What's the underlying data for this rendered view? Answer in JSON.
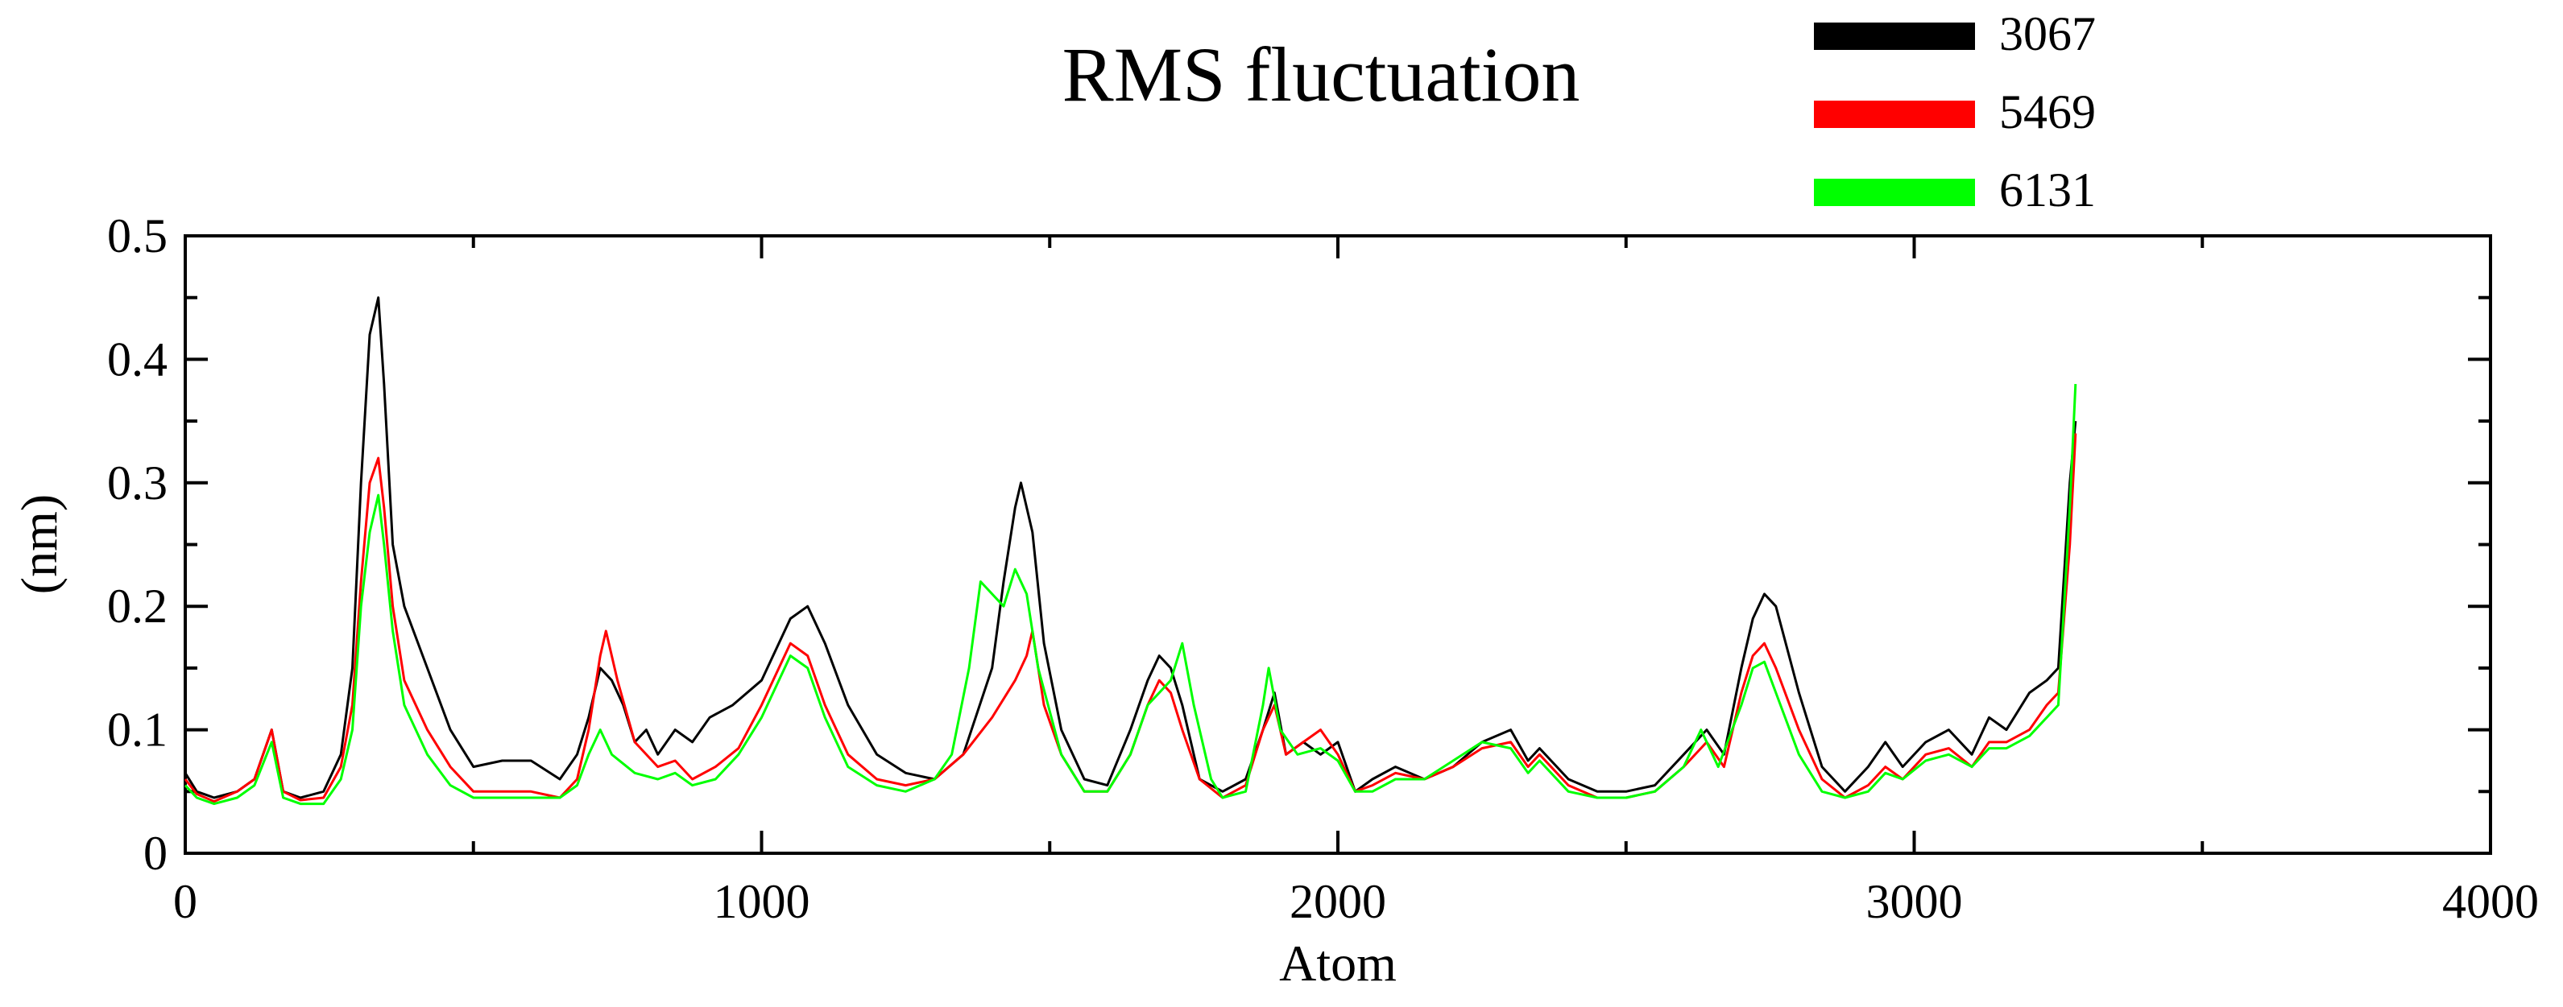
{
  "chart_data": {
    "type": "line",
    "title": "RMS fluctuation",
    "xlabel": "Atom",
    "ylabel": "(nm)",
    "xlim": [
      0,
      4000
    ],
    "ylim": [
      0,
      0.5
    ],
    "x_ticks": [
      "0",
      "1000",
      "2000",
      "3000",
      "4000"
    ],
    "y_ticks": [
      "0",
      "0.1",
      "0.2",
      "0.3",
      "0.4",
      "0.5"
    ],
    "grid": false,
    "legend_position": "top-right",
    "series": [
      {
        "name": "3067",
        "color": "#000000",
        "points": [
          [
            0,
            0.065
          ],
          [
            20,
            0.05
          ],
          [
            50,
            0.045
          ],
          [
            90,
            0.05
          ],
          [
            120,
            0.06
          ],
          [
            150,
            0.1
          ],
          [
            170,
            0.05
          ],
          [
            200,
            0.045
          ],
          [
            240,
            0.05
          ],
          [
            270,
            0.08
          ],
          [
            290,
            0.15
          ],
          [
            305,
            0.3
          ],
          [
            320,
            0.42
          ],
          [
            335,
            0.45
          ],
          [
            345,
            0.38
          ],
          [
            360,
            0.25
          ],
          [
            380,
            0.2
          ],
          [
            420,
            0.15
          ],
          [
            460,
            0.1
          ],
          [
            500,
            0.07
          ],
          [
            550,
            0.075
          ],
          [
            600,
            0.075
          ],
          [
            650,
            0.06
          ],
          [
            680,
            0.08
          ],
          [
            700,
            0.11
          ],
          [
            720,
            0.15
          ],
          [
            740,
            0.14
          ],
          [
            760,
            0.12
          ],
          [
            780,
            0.09
          ],
          [
            800,
            0.1
          ],
          [
            820,
            0.08
          ],
          [
            850,
            0.1
          ],
          [
            880,
            0.09
          ],
          [
            910,
            0.11
          ],
          [
            950,
            0.12
          ],
          [
            1000,
            0.14
          ],
          [
            1050,
            0.19
          ],
          [
            1080,
            0.2
          ],
          [
            1110,
            0.17
          ],
          [
            1150,
            0.12
          ],
          [
            1200,
            0.08
          ],
          [
            1250,
            0.065
          ],
          [
            1300,
            0.06
          ],
          [
            1350,
            0.08
          ],
          [
            1400,
            0.15
          ],
          [
            1420,
            0.22
          ],
          [
            1440,
            0.28
          ],
          [
            1450,
            0.3
          ],
          [
            1470,
            0.26
          ],
          [
            1490,
            0.17
          ],
          [
            1520,
            0.1
          ],
          [
            1560,
            0.06
          ],
          [
            1600,
            0.055
          ],
          [
            1640,
            0.1
          ],
          [
            1670,
            0.14
          ],
          [
            1690,
            0.16
          ],
          [
            1710,
            0.15
          ],
          [
            1730,
            0.12
          ],
          [
            1760,
            0.06
          ],
          [
            1800,
            0.05
          ],
          [
            1840,
            0.06
          ],
          [
            1870,
            0.1
          ],
          [
            1890,
            0.13
          ],
          [
            1910,
            0.08
          ],
          [
            1940,
            0.09
          ],
          [
            1970,
            0.08
          ],
          [
            2000,
            0.09
          ],
          [
            2030,
            0.05
          ],
          [
            2060,
            0.06
          ],
          [
            2100,
            0.07
          ],
          [
            2150,
            0.06
          ],
          [
            2200,
            0.07
          ],
          [
            2250,
            0.09
          ],
          [
            2300,
            0.1
          ],
          [
            2330,
            0.075
          ],
          [
            2350,
            0.085
          ],
          [
            2400,
            0.06
          ],
          [
            2450,
            0.05
          ],
          [
            2500,
            0.05
          ],
          [
            2550,
            0.055
          ],
          [
            2600,
            0.08
          ],
          [
            2640,
            0.1
          ],
          [
            2670,
            0.08
          ],
          [
            2700,
            0.15
          ],
          [
            2720,
            0.19
          ],
          [
            2740,
            0.21
          ],
          [
            2760,
            0.2
          ],
          [
            2800,
            0.13
          ],
          [
            2840,
            0.07
          ],
          [
            2880,
            0.05
          ],
          [
            2920,
            0.07
          ],
          [
            2950,
            0.09
          ],
          [
            2980,
            0.07
          ],
          [
            3020,
            0.09
          ],
          [
            3060,
            0.1
          ],
          [
            3100,
            0.08
          ],
          [
            3130,
            0.11
          ],
          [
            3160,
            0.1
          ],
          [
            3200,
            0.13
          ],
          [
            3230,
            0.14
          ],
          [
            3250,
            0.15
          ],
          [
            3270,
            0.3
          ],
          [
            3280,
            0.35
          ]
        ]
      },
      {
        "name": "5469",
        "color": "#ff0000",
        "points": [
          [
            0,
            0.06
          ],
          [
            20,
            0.048
          ],
          [
            50,
            0.042
          ],
          [
            90,
            0.05
          ],
          [
            120,
            0.06
          ],
          [
            150,
            0.1
          ],
          [
            170,
            0.05
          ],
          [
            200,
            0.043
          ],
          [
            240,
            0.045
          ],
          [
            270,
            0.07
          ],
          [
            290,
            0.12
          ],
          [
            305,
            0.22
          ],
          [
            320,
            0.3
          ],
          [
            335,
            0.32
          ],
          [
            345,
            0.28
          ],
          [
            360,
            0.2
          ],
          [
            380,
            0.14
          ],
          [
            420,
            0.1
          ],
          [
            460,
            0.07
          ],
          [
            500,
            0.05
          ],
          [
            550,
            0.05
          ],
          [
            600,
            0.05
          ],
          [
            650,
            0.045
          ],
          [
            680,
            0.06
          ],
          [
            700,
            0.1
          ],
          [
            720,
            0.16
          ],
          [
            730,
            0.18
          ],
          [
            750,
            0.14
          ],
          [
            780,
            0.09
          ],
          [
            820,
            0.07
          ],
          [
            850,
            0.075
          ],
          [
            880,
            0.06
          ],
          [
            920,
            0.07
          ],
          [
            960,
            0.085
          ],
          [
            1000,
            0.12
          ],
          [
            1050,
            0.17
          ],
          [
            1080,
            0.16
          ],
          [
            1110,
            0.12
          ],
          [
            1150,
            0.08
          ],
          [
            1200,
            0.06
          ],
          [
            1250,
            0.055
          ],
          [
            1300,
            0.06
          ],
          [
            1350,
            0.08
          ],
          [
            1400,
            0.11
          ],
          [
            1440,
            0.14
          ],
          [
            1460,
            0.16
          ],
          [
            1470,
            0.18
          ],
          [
            1490,
            0.12
          ],
          [
            1520,
            0.08
          ],
          [
            1560,
            0.05
          ],
          [
            1600,
            0.05
          ],
          [
            1640,
            0.08
          ],
          [
            1670,
            0.12
          ],
          [
            1690,
            0.14
          ],
          [
            1710,
            0.13
          ],
          [
            1730,
            0.1
          ],
          [
            1760,
            0.06
          ],
          [
            1800,
            0.045
          ],
          [
            1840,
            0.055
          ],
          [
            1870,
            0.1
          ],
          [
            1890,
            0.12
          ],
          [
            1910,
            0.08
          ],
          [
            1940,
            0.09
          ],
          [
            1970,
            0.1
          ],
          [
            2000,
            0.08
          ],
          [
            2030,
            0.05
          ],
          [
            2060,
            0.055
          ],
          [
            2100,
            0.065
          ],
          [
            2150,
            0.06
          ],
          [
            2200,
            0.07
          ],
          [
            2250,
            0.085
          ],
          [
            2300,
            0.09
          ],
          [
            2330,
            0.07
          ],
          [
            2350,
            0.08
          ],
          [
            2400,
            0.055
          ],
          [
            2450,
            0.045
          ],
          [
            2500,
            0.045
          ],
          [
            2550,
            0.05
          ],
          [
            2600,
            0.07
          ],
          [
            2640,
            0.09
          ],
          [
            2670,
            0.07
          ],
          [
            2700,
            0.13
          ],
          [
            2720,
            0.16
          ],
          [
            2740,
            0.17
          ],
          [
            2760,
            0.15
          ],
          [
            2800,
            0.1
          ],
          [
            2840,
            0.06
          ],
          [
            2880,
            0.045
          ],
          [
            2920,
            0.055
          ],
          [
            2950,
            0.07
          ],
          [
            2980,
            0.06
          ],
          [
            3020,
            0.08
          ],
          [
            3060,
            0.085
          ],
          [
            3100,
            0.07
          ],
          [
            3130,
            0.09
          ],
          [
            3160,
            0.09
          ],
          [
            3200,
            0.1
          ],
          [
            3230,
            0.12
          ],
          [
            3250,
            0.13
          ],
          [
            3270,
            0.25
          ],
          [
            3280,
            0.34
          ]
        ]
      },
      {
        "name": "6131",
        "color": "#00ff00",
        "points": [
          [
            0,
            0.055
          ],
          [
            20,
            0.045
          ],
          [
            50,
            0.04
          ],
          [
            90,
            0.045
          ],
          [
            120,
            0.055
          ],
          [
            150,
            0.09
          ],
          [
            170,
            0.045
          ],
          [
            200,
            0.04
          ],
          [
            240,
            0.04
          ],
          [
            270,
            0.06
          ],
          [
            290,
            0.1
          ],
          [
            305,
            0.2
          ],
          [
            320,
            0.26
          ],
          [
            335,
            0.29
          ],
          [
            345,
            0.25
          ],
          [
            360,
            0.18
          ],
          [
            380,
            0.12
          ],
          [
            420,
            0.08
          ],
          [
            460,
            0.055
          ],
          [
            500,
            0.045
          ],
          [
            550,
            0.045
          ],
          [
            600,
            0.045
          ],
          [
            650,
            0.045
          ],
          [
            680,
            0.055
          ],
          [
            700,
            0.08
          ],
          [
            720,
            0.1
          ],
          [
            740,
            0.08
          ],
          [
            780,
            0.065
          ],
          [
            820,
            0.06
          ],
          [
            850,
            0.065
          ],
          [
            880,
            0.055
          ],
          [
            920,
            0.06
          ],
          [
            960,
            0.08
          ],
          [
            1000,
            0.11
          ],
          [
            1050,
            0.16
          ],
          [
            1080,
            0.15
          ],
          [
            1110,
            0.11
          ],
          [
            1150,
            0.07
          ],
          [
            1200,
            0.055
          ],
          [
            1250,
            0.05
          ],
          [
            1300,
            0.06
          ],
          [
            1330,
            0.08
          ],
          [
            1360,
            0.15
          ],
          [
            1380,
            0.22
          ],
          [
            1400,
            0.21
          ],
          [
            1420,
            0.2
          ],
          [
            1440,
            0.23
          ],
          [
            1460,
            0.21
          ],
          [
            1480,
            0.15
          ],
          [
            1520,
            0.08
          ],
          [
            1560,
            0.05
          ],
          [
            1600,
            0.05
          ],
          [
            1640,
            0.08
          ],
          [
            1670,
            0.12
          ],
          [
            1690,
            0.13
          ],
          [
            1710,
            0.14
          ],
          [
            1730,
            0.17
          ],
          [
            1750,
            0.12
          ],
          [
            1780,
            0.06
          ],
          [
            1800,
            0.045
          ],
          [
            1840,
            0.05
          ],
          [
            1870,
            0.12
          ],
          [
            1880,
            0.15
          ],
          [
            1900,
            0.1
          ],
          [
            1930,
            0.08
          ],
          [
            1970,
            0.085
          ],
          [
            2000,
            0.075
          ],
          [
            2030,
            0.05
          ],
          [
            2060,
            0.05
          ],
          [
            2100,
            0.06
          ],
          [
            2150,
            0.06
          ],
          [
            2200,
            0.075
          ],
          [
            2250,
            0.09
          ],
          [
            2300,
            0.085
          ],
          [
            2330,
            0.065
          ],
          [
            2350,
            0.075
          ],
          [
            2400,
            0.05
          ],
          [
            2450,
            0.045
          ],
          [
            2500,
            0.045
          ],
          [
            2550,
            0.05
          ],
          [
            2600,
            0.07
          ],
          [
            2630,
            0.1
          ],
          [
            2660,
            0.07
          ],
          [
            2700,
            0.12
          ],
          [
            2720,
            0.15
          ],
          [
            2740,
            0.155
          ],
          [
            2760,
            0.13
          ],
          [
            2800,
            0.08
          ],
          [
            2840,
            0.05
          ],
          [
            2880,
            0.045
          ],
          [
            2920,
            0.05
          ],
          [
            2950,
            0.065
          ],
          [
            2980,
            0.06
          ],
          [
            3020,
            0.075
          ],
          [
            3060,
            0.08
          ],
          [
            3100,
            0.07
          ],
          [
            3130,
            0.085
          ],
          [
            3160,
            0.085
          ],
          [
            3200,
            0.095
          ],
          [
            3230,
            0.11
          ],
          [
            3250,
            0.12
          ],
          [
            3270,
            0.28
          ],
          [
            3280,
            0.38
          ]
        ]
      }
    ]
  }
}
